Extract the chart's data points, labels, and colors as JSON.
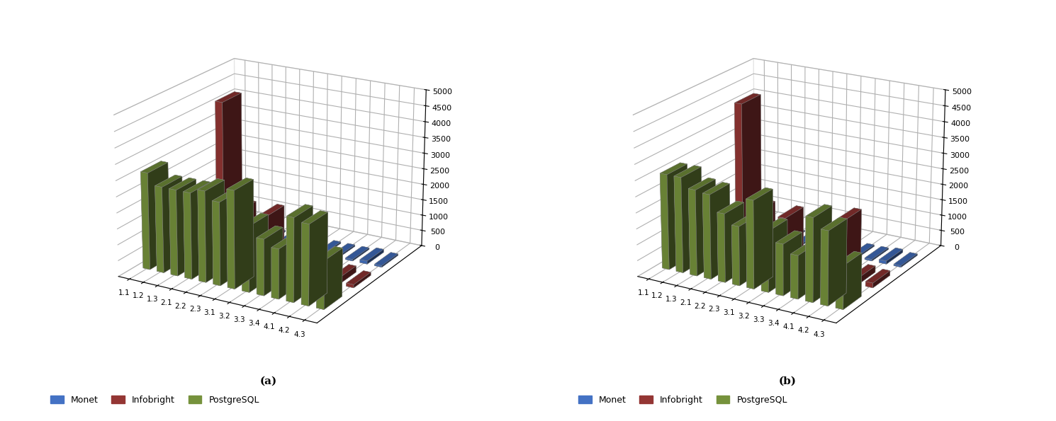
{
  "categories": [
    "1.1",
    "1.2",
    "1.3",
    "2.1",
    "2.2",
    "2.3",
    "3.1",
    "3.2",
    "3.3",
    "3.4",
    "4.1",
    "4.2",
    "4.3"
  ],
  "chart_a": {
    "monet": [
      50,
      100,
      50,
      50,
      50,
      50,
      100,
      50,
      50,
      50,
      50,
      100,
      50
    ],
    "infobright": [
      200,
      150,
      100,
      4950,
      1600,
      50,
      1650,
      100,
      100,
      150,
      50,
      200,
      100
    ],
    "postgresql": [
      3050,
      2700,
      2700,
      2700,
      2850,
      2600,
      3050,
      2050,
      1750,
      1550,
      2600,
      2500,
      1500
    ]
  },
  "chart_b": {
    "monet": [
      50,
      100,
      50,
      50,
      50,
      50,
      100,
      50,
      50,
      50,
      50,
      100,
      50
    ],
    "infobright": [
      200,
      200,
      100,
      4900,
      1600,
      50,
      1600,
      100,
      100,
      150,
      1900,
      200,
      150
    ],
    "postgresql": [
      3000,
      3000,
      2700,
      2650,
      2150,
      1850,
      2750,
      1900,
      1600,
      1350,
      2600,
      2300,
      1350
    ]
  },
  "colors": {
    "monet": "#4472C4",
    "infobright": "#943634",
    "postgresql": "#76923C"
  },
  "ylim": [
    0,
    5000
  ],
  "yticks": [
    0,
    500,
    1000,
    1500,
    2000,
    2500,
    3000,
    3500,
    4000,
    4500,
    5000
  ],
  "legend_labels": [
    "Monet",
    "Infobright",
    "PostgreSQL"
  ],
  "label_a": "(a)",
  "label_b": "(b)",
  "elev": 20,
  "azim": -60,
  "bar_width": 0.5,
  "bar_depth": 0.6
}
